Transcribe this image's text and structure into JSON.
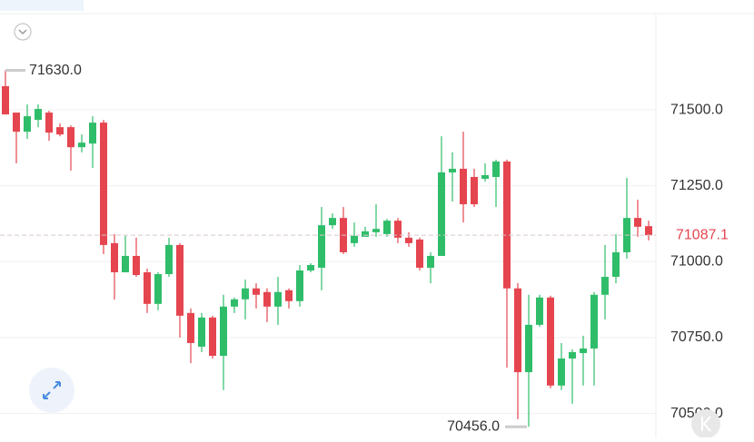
{
  "chart_data": {
    "type": "candlestick",
    "open": [
      71578,
      71491,
      71428,
      71467,
      71491,
      71443,
      71443,
      71377,
      71389,
      71458,
      71061,
      70965,
      71019,
      70965,
      70861,
      70959,
      71055,
      70831,
      70720,
      70816,
      70690,
      70852,
      70876,
      70912,
      70900,
      70852,
      70906,
      70870,
      70971,
      70980,
      71120,
      71144,
      71061,
      71082,
      71097,
      71091,
      71135,
      71079,
      71073,
      70980,
      71019,
      71294,
      71306,
      71279,
      71273,
      71279,
      71330,
      70912,
      70636,
      70792,
      70882,
      70592,
      70681,
      70699,
      70714,
      70891,
      70950,
      71031,
      71144,
      71117
    ],
    "high": [
      71630,
      71491,
      71518,
      71518,
      71497,
      71455,
      71449,
      71419,
      71479,
      71467,
      71091,
      71085,
      71079,
      70977,
      70965,
      71079,
      71061,
      70846,
      70831,
      70822,
      70891,
      70882,
      70941,
      70929,
      70912,
      70950,
      70912,
      70989,
      70995,
      71180,
      71159,
      71180,
      71129,
      71115,
      71189,
      71141,
      71144,
      71097,
      71079,
      71031,
      71413,
      71360,
      71428,
      71306,
      71324,
      71336,
      71336,
      70929,
      70891,
      70891,
      70888,
      70732,
      70711,
      70756,
      70900,
      71055,
      71091,
      71276,
      71204,
      71135
    ],
    "low": [
      71485,
      71324,
      71404,
      71443,
      71398,
      71413,
      71300,
      71360,
      71309,
      71025,
      70875,
      70965,
      70950,
      70831,
      70840,
      70950,
      70750,
      70666,
      70702,
      70681,
      70577,
      70831,
      70810,
      70846,
      70801,
      70792,
      70846,
      70852,
      70965,
      70906,
      71108,
      71025,
      71049,
      71082,
      71082,
      71082,
      71061,
      71049,
      70971,
      70929,
      71019,
      71198,
      71129,
      71180,
      71264,
      71180,
      70651,
      70481,
      70456,
      70786,
      70583,
      70577,
      70532,
      70592,
      70592,
      70810,
      70929,
      71010,
      71082,
      71070
    ],
    "close": [
      71485,
      71428,
      71479,
      71503,
      71425,
      71419,
      71377,
      71392,
      71458,
      71055,
      70965,
      71019,
      70956,
      70861,
      70959,
      71055,
      70822,
      70732,
      70816,
      70690,
      70852,
      70876,
      70912,
      70891,
      70852,
      70900,
      70870,
      70971,
      70989,
      71120,
      71144,
      71031,
      71085,
      71100,
      71108,
      71135,
      71079,
      71061,
      70980,
      71019,
      71294,
      71306,
      71189,
      71189,
      71285,
      71330,
      70912,
      70636,
      70792,
      70882,
      70592,
      70681,
      70702,
      70714,
      70891,
      70950,
      71031,
      71144,
      71115,
      71087.1
    ],
    "up_color": "#2fbd6a",
    "down_color": "#e5454f",
    "ylim": [
      70421,
      71817
    ],
    "yticks": [
      {
        "value": 70500,
        "label": "70500.0"
      },
      {
        "value": 70750,
        "label": "70750.0"
      },
      {
        "value": 71000,
        "label": "71000.0"
      },
      {
        "value": 71250,
        "label": "71250.0"
      },
      {
        "value": 71500,
        "label": "71500.0"
      }
    ],
    "grid": true,
    "last_price": {
      "value": 71087.1,
      "label": "71087.1"
    },
    "max_marker": {
      "value": 71630,
      "label": "71630.0"
    },
    "min_marker": {
      "value": 70456,
      "label": "70456.0"
    }
  }
}
